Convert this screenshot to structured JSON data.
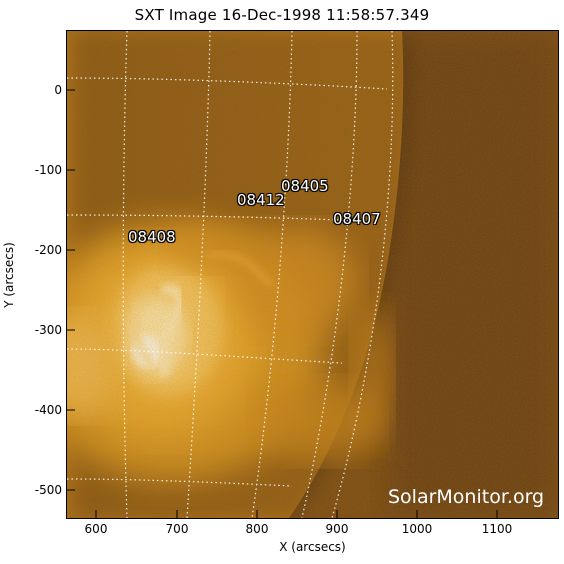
{
  "title": "SXT Image 16-Dec-1998 11:58:57.349",
  "xlabel": "X (arcsecs)",
  "ylabel": "Y (arcsecs)",
  "x_ticks": [
    "600",
    "700",
    "800",
    "900",
    "1000",
    "1100"
  ],
  "y_ticks": [
    "0",
    "-100",
    "-200",
    "-300",
    "-400",
    "-500"
  ],
  "active_regions": [
    "08405",
    "08412",
    "08407",
    "08408"
  ],
  "watermark": "SolarMonitor.org",
  "colors": {
    "disk": "#c07a18",
    "background": "#6a3e0c",
    "bright_core": "#fff5dc",
    "grid": "#ffffff"
  }
}
